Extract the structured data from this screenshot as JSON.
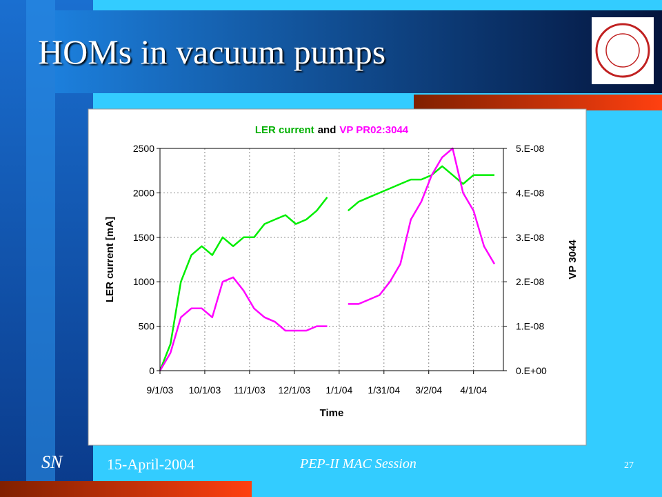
{
  "slide": {
    "title": "HOMs in vacuum pumps",
    "initials": "SN",
    "date": "15-April-2004",
    "event": "PEP-II MAC Session",
    "page": "27"
  },
  "chart_data": {
    "type": "line",
    "title_parts": [
      "LER current",
      "and",
      "VP PR02:3044"
    ],
    "x_label": "Time",
    "y_label": "LER current [mA]",
    "y2_label": "VP 3044",
    "x": [
      "2003-09-01",
      "2003-09-08",
      "2003-09-15",
      "2003-09-22",
      "2003-09-29",
      "2003-10-06",
      "2003-10-13",
      "2003-10-20",
      "2003-10-27",
      "2003-11-03",
      "2003-11-10",
      "2003-11-17",
      "2003-11-24",
      "2003-12-01",
      "2003-12-08",
      "2003-12-15",
      "2003-12-22",
      "2003-12-29",
      "2004-01-05",
      "2004-01-12",
      "2004-01-19",
      "2004-01-26",
      "2004-02-02",
      "2004-02-09",
      "2004-02-16",
      "2004-02-23",
      "2004-03-01",
      "2004-03-08",
      "2004-03-15",
      "2004-03-22",
      "2004-03-29",
      "2004-04-05",
      "2004-04-12"
    ],
    "series": [
      {
        "name": "LER current",
        "color": "#00ee00",
        "values": [
          0,
          300,
          1000,
          1300,
          1400,
          1300,
          1500,
          1400,
          1500,
          1500,
          1650,
          1700,
          1750,
          1650,
          1700,
          1800,
          1950,
          null,
          1800,
          1900,
          1950,
          2000,
          2050,
          2100,
          2150,
          2150,
          2200,
          2300,
          2200,
          2100,
          2200,
          2200,
          2200
        ]
      },
      {
        "name": "VP PR02:3044",
        "color": "#ff00ff",
        "axis": "y2",
        "values": [
          0,
          4e-09,
          1.2e-08,
          1.4e-08,
          1.4e-08,
          1.2e-08,
          2e-08,
          2.1e-08,
          1.8e-08,
          1.4e-08,
          1.2e-08,
          1.1e-08,
          9e-09,
          9e-09,
          9e-09,
          1e-08,
          1e-08,
          null,
          1.5e-08,
          1.5e-08,
          1.6e-08,
          1.7e-08,
          2e-08,
          2.4e-08,
          3.4e-08,
          3.8e-08,
          4.4e-08,
          4.8e-08,
          5e-08,
          4e-08,
          3.6e-08,
          2.8e-08,
          2.4e-08
        ]
      }
    ],
    "xlim": [
      "2003-09-01",
      "2004-04-18"
    ],
    "xticks": [
      {
        "value": "2003-09-01",
        "label": "9/1/03"
      },
      {
        "value": "2003-10-01",
        "label": "10/1/03"
      },
      {
        "value": "2003-10-31",
        "label": "11/1/03"
      },
      {
        "value": "2003-11-30",
        "label": "12/1/03"
      },
      {
        "value": "2003-12-30",
        "label": "1/1/04"
      },
      {
        "value": "2004-01-29",
        "label": "1/31/04"
      },
      {
        "value": "2004-02-28",
        "label": "3/2/04"
      },
      {
        "value": "2004-03-29",
        "label": "4/1/04"
      }
    ],
    "ylim": [
      0,
      2500
    ],
    "yticks": [
      0,
      500,
      1000,
      1500,
      2000,
      2500
    ],
    "y2lim": [
      0,
      5e-08
    ],
    "y2ticks": [
      {
        "value": 0,
        "label": "0.E+00"
      },
      {
        "value": 1e-08,
        "label": "1.E-08"
      },
      {
        "value": 2e-08,
        "label": "2.E-08"
      },
      {
        "value": 3e-08,
        "label": "3.E-08"
      },
      {
        "value": 4e-08,
        "label": "4.E-08"
      },
      {
        "value": 5e-08,
        "label": "5.E-08"
      }
    ],
    "grid": true
  }
}
